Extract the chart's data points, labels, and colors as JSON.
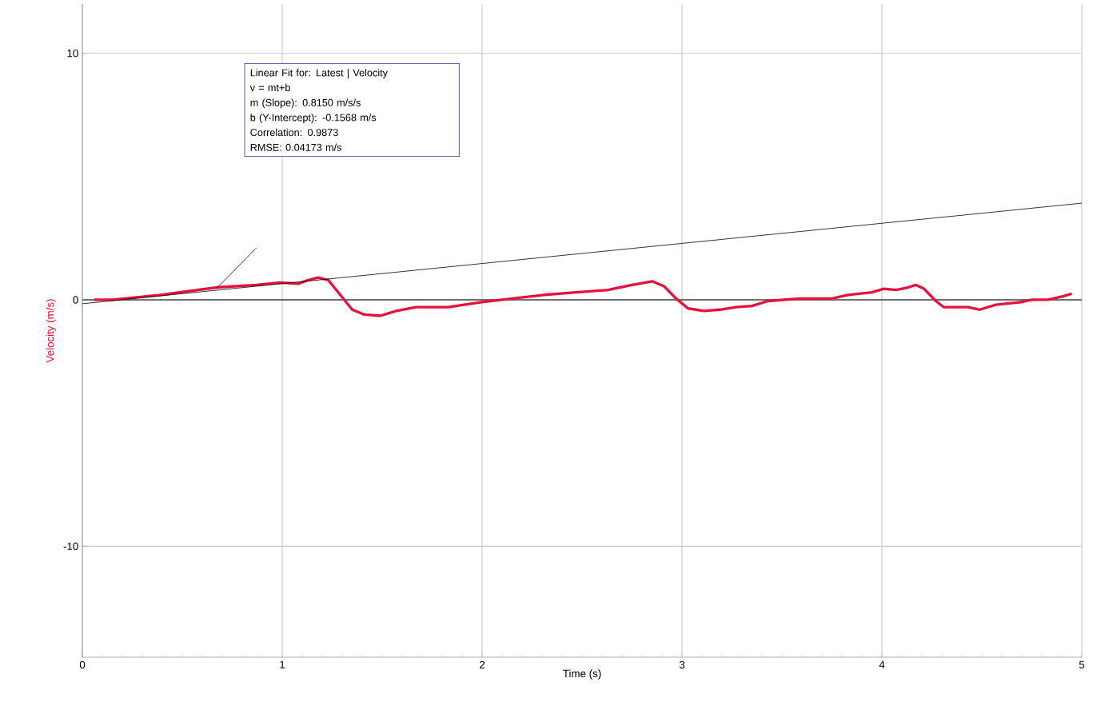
{
  "chart_data": {
    "type": "line",
    "xlabel": "Time (s)",
    "ylabel": "Velocity (m/s)",
    "xlim": [
      0,
      5
    ],
    "ylim": [
      -14.5,
      12
    ],
    "xticks": [
      0,
      1,
      2,
      3,
      4,
      5
    ],
    "yticks": [
      -10,
      0,
      10
    ],
    "grid": true,
    "marker": "none",
    "line_style": "solid",
    "series": [
      {
        "color": "#e8103c",
        "x": [
          0.06,
          0.15,
          0.39,
          0.67,
          0.87,
          0.99,
          1.08,
          1.13,
          1.18,
          1.23,
          1.29,
          1.35,
          1.41,
          1.49,
          1.57,
          1.67,
          1.83,
          1.99,
          2.15,
          2.31,
          2.47,
          2.63,
          2.75,
          2.85,
          2.91,
          2.97,
          3.03,
          3.11,
          3.19,
          3.27,
          3.35,
          3.43,
          3.59,
          3.75,
          3.83,
          3.95,
          4.01,
          4.07,
          4.13,
          4.17,
          4.21,
          4.27,
          4.31,
          4.43,
          4.49,
          4.57,
          4.69,
          4.75,
          4.83,
          4.91,
          4.95
        ],
        "values": [
          0,
          0,
          0.2,
          0.5,
          0.6,
          0.7,
          0.65,
          0.8,
          0.9,
          0.8,
          0.2,
          -0.4,
          -0.6,
          -0.65,
          -0.45,
          -0.3,
          -0.3,
          -0.1,
          0.05,
          0.2,
          0.3,
          0.4,
          0.6,
          0.75,
          0.55,
          0.05,
          -0.35,
          -0.45,
          -0.4,
          -0.3,
          -0.25,
          -0.05,
          0.05,
          0.05,
          0.2,
          0.3,
          0.45,
          0.4,
          0.5,
          0.6,
          0.45,
          -0.05,
          -0.3,
          -0.3,
          -0.4,
          -0.2,
          -0.1,
          0,
          0,
          0.15,
          0.25
        ]
      },
      {
        "type": "line",
        "color": "#000000",
        "x": [
          0,
          5
        ],
        "values": [
          -0.16,
          3.92
        ]
      }
    ],
    "ref_lines": [
      {
        "axis": "y",
        "value": 0,
        "color": "#707070"
      }
    ],
    "annotations": [
      "Linear Fit for: Latest | Velocity",
      "v = mt+b",
      "m (Slope): 0.8150 m/s/s",
      "b (Y-Intercept): -0.1568 m/s",
      "Correlation: 0.9873",
      "RMSE: 0.04173 m/s"
    ]
  }
}
